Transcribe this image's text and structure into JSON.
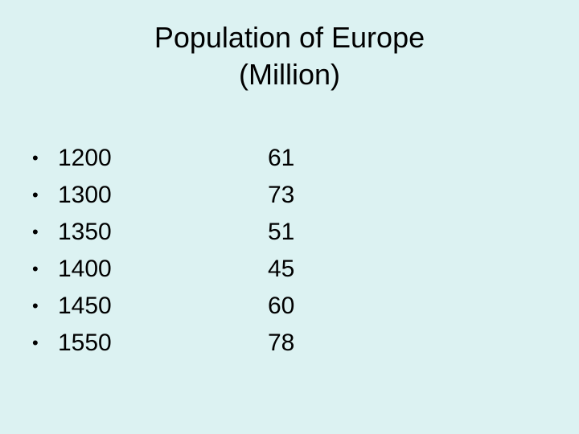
{
  "slide": {
    "title_line1": "Population of Europe",
    "title_line2": "(Million)",
    "bullet": "•",
    "rows": [
      {
        "year": "1200",
        "value": "61"
      },
      {
        "year": "1300",
        "value": "73"
      },
      {
        "year": "1350",
        "value": "51"
      },
      {
        "year": "1400",
        "value": "45"
      },
      {
        "year": "1450",
        "value": "60"
      },
      {
        "year": "1550",
        "value": "78"
      }
    ]
  },
  "colors": {
    "background": "#dcf2f2",
    "text": "#000000"
  }
}
